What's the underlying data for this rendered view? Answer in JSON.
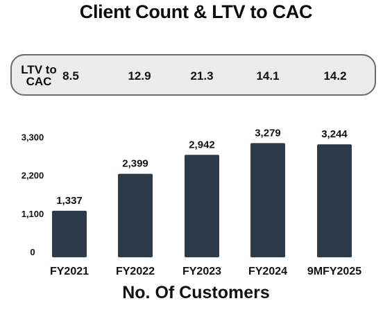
{
  "title": "Client Count & LTV to CAC",
  "ltv_to_cac": {
    "label": "LTV to CAC",
    "values": [
      "8.5",
      "12.9",
      "21.3",
      "14.1",
      "14.2"
    ]
  },
  "colors": {
    "bar": "#2d3a4a",
    "box_fill": "#ececec",
    "box_border": "#6a6a6a"
  },
  "chart_data": {
    "type": "bar",
    "title": "Client Count & LTV to CAC",
    "xlabel": "No. Of Customers",
    "ylabel": "",
    "categories": [
      "FY2021",
      "FY2022",
      "FY2023",
      "FY2024",
      "9MFY2025"
    ],
    "values": [
      1337,
      2399,
      2942,
      3279,
      3244
    ],
    "data_labels": [
      "1,337",
      "2,399",
      "2,942",
      "3,279",
      "3,244"
    ],
    "yticks": [
      0,
      1100,
      2200,
      3300
    ],
    "ytick_labels": [
      "0",
      "1,100",
      "2,200",
      "3,300"
    ],
    "ylim": [
      0,
      3300
    ],
    "grid": false,
    "legend": "none"
  }
}
